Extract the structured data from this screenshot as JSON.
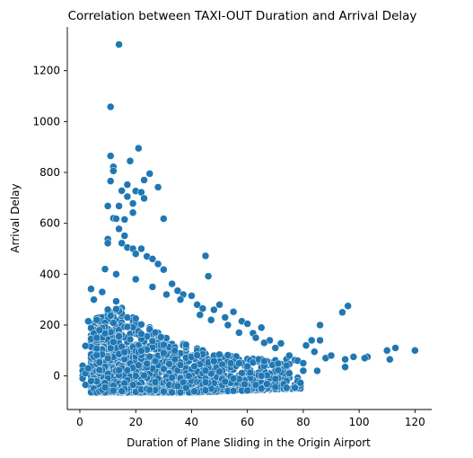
{
  "chart_data": {
    "type": "scatter",
    "title": "Correlation between TAXI-OUT Duration and Arrival Delay",
    "xlabel": "Duration of Plane Sliding in the Origin Airport",
    "ylabel": "Arrival Delay",
    "xlim": [
      -4.5,
      126
    ],
    "ylim": [
      -132,
      1372
    ],
    "xticks": [
      0,
      20,
      40,
      60,
      80,
      100,
      120
    ],
    "yticks": [
      0,
      200,
      400,
      600,
      800,
      1000,
      1200
    ],
    "grid": false,
    "legend": "none",
    "color": "#1f77b4",
    "points": [
      [
        14,
        1303
      ],
      [
        11,
        1058
      ],
      [
        11,
        865
      ],
      [
        12,
        822
      ],
      [
        12,
        806
      ],
      [
        21,
        895
      ],
      [
        18,
        845
      ],
      [
        25,
        795
      ],
      [
        23,
        770
      ],
      [
        20,
        727
      ],
      [
        28,
        742
      ],
      [
        17,
        752
      ],
      [
        22,
        722
      ],
      [
        11,
        766
      ],
      [
        15,
        728
      ],
      [
        19,
        678
      ],
      [
        17,
        705
      ],
      [
        23,
        698
      ],
      [
        14,
        668
      ],
      [
        10,
        668
      ],
      [
        12,
        620
      ],
      [
        30,
        618
      ],
      [
        19,
        642
      ],
      [
        16,
        615
      ],
      [
        13,
        618
      ],
      [
        14,
        578
      ],
      [
        16,
        551
      ],
      [
        10,
        538
      ],
      [
        10,
        522
      ],
      [
        15,
        522
      ],
      [
        17,
        505
      ],
      [
        19,
        500
      ],
      [
        22,
        500
      ],
      [
        24,
        470
      ],
      [
        20,
        480
      ],
      [
        26,
        460
      ],
      [
        28,
        440
      ],
      [
        30,
        418
      ],
      [
        33,
        362
      ],
      [
        35,
        335
      ],
      [
        37,
        320
      ],
      [
        40,
        315
      ],
      [
        45,
        472
      ],
      [
        46,
        392
      ],
      [
        42,
        280
      ],
      [
        44,
        265
      ],
      [
        48,
        260
      ],
      [
        50,
        280
      ],
      [
        52,
        230
      ],
      [
        55,
        252
      ],
      [
        58,
        215
      ],
      [
        60,
        205
      ],
      [
        62,
        168
      ],
      [
        65,
        190
      ],
      [
        68,
        140
      ],
      [
        72,
        128
      ],
      [
        4,
        342
      ],
      [
        3,
        215
      ],
      [
        5,
        300
      ],
      [
        2,
        118
      ],
      [
        6,
        150
      ],
      [
        7,
        180
      ],
      [
        8,
        330
      ],
      [
        9,
        420
      ],
      [
        13,
        400
      ],
      [
        26,
        350
      ],
      [
        20,
        380
      ],
      [
        31,
        320
      ],
      [
        36,
        300
      ],
      [
        43,
        240
      ],
      [
        47,
        220
      ],
      [
        53,
        200
      ],
      [
        57,
        170
      ],
      [
        63,
        150
      ],
      [
        66,
        130
      ],
      [
        70,
        110
      ],
      [
        75,
        80
      ],
      [
        78,
        60
      ],
      [
        80,
        50
      ],
      [
        81,
        120
      ],
      [
        83,
        140
      ],
      [
        84,
        95
      ],
      [
        86,
        200
      ],
      [
        86,
        140
      ],
      [
        88,
        70
      ],
      [
        90,
        80
      ],
      [
        94,
        250
      ],
      [
        96,
        275
      ],
      [
        98,
        75
      ],
      [
        95,
        65
      ],
      [
        103,
        75
      ],
      [
        110,
        100
      ],
      [
        111,
        65
      ],
      [
        113,
        110
      ],
      [
        120,
        100
      ],
      [
        1,
        40
      ],
      [
        1,
        20
      ],
      [
        1,
        0
      ],
      [
        1,
        -10
      ],
      [
        2,
        -35
      ],
      [
        2,
        10
      ],
      [
        3,
        30
      ],
      [
        4,
        -20
      ],
      [
        5,
        -50
      ],
      [
        6,
        -65
      ],
      [
        7,
        -60
      ],
      [
        8,
        -55
      ],
      [
        9,
        -45
      ],
      [
        15,
        -60
      ],
      [
        25,
        -55
      ],
      [
        35,
        -40
      ],
      [
        45,
        -25
      ],
      [
        55,
        -10
      ],
      [
        65,
        0
      ],
      [
        75,
        10
      ],
      [
        85,
        20
      ],
      [
        95,
        35
      ],
      [
        102,
        70
      ]
    ]
  }
}
